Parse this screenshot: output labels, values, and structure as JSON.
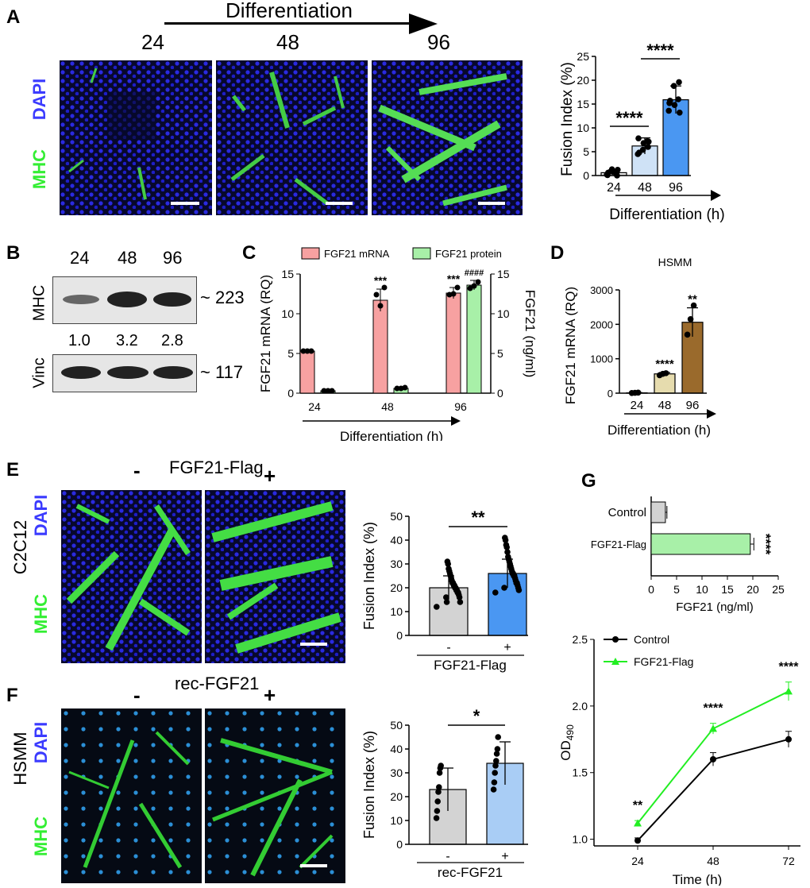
{
  "panelA": {
    "label": "A",
    "header": "Differentiation",
    "times": [
      "24",
      "48",
      "96"
    ],
    "dapi": "DAPI",
    "mhc": "MHC"
  },
  "panelB": {
    "label": "B",
    "times": [
      "24",
      "48",
      "96"
    ],
    "mhc_label": "MHC",
    "vinc_label": "Vinc",
    "mhc_kda": "~ 223",
    "vinc_kda": "~ 117",
    "ratios": [
      "1.0",
      "3.2",
      "2.8"
    ]
  },
  "panelC": {
    "label": "C"
  },
  "panelD": {
    "label": "D"
  },
  "panelE": {
    "label": "E",
    "header": "FGF21-Flag",
    "minus": "-",
    "plus": "+",
    "cell": "C2C12",
    "dapi": "DAPI",
    "mhc": "MHC"
  },
  "panelF": {
    "label": "F",
    "header": "rec-FGF21",
    "minus": "-",
    "plus": "+",
    "cell": "HSMM",
    "dapi": "DAPI",
    "mhc": "MHC"
  },
  "panelG": {
    "label": "G"
  },
  "colors": {
    "dapi": "#3b3bff",
    "mhc": "#33ee33",
    "pink": "#f7a1a1",
    "lightgreen": "#a8f0a8",
    "lightblue": "#cfe2f6",
    "blue": "#4a97f2",
    "gray": "#d3d3d3",
    "brown": "#9a6a2c",
    "tan": "#e6dcae",
    "green_line": "#22ee22"
  },
  "chart_data": [
    {
      "id": "A-fusion",
      "type": "bar",
      "categories": [
        "24",
        "48",
        "96"
      ],
      "values": [
        0.6,
        6.2,
        15.9
      ],
      "errors": [
        0.6,
        1.7,
        2.9
      ],
      "points": [
        [
          0.2,
          0.5,
          1.3,
          0.1,
          0.0,
          0.8,
          0.6,
          1.2
        ],
        [
          4.5,
          7.2,
          5.4,
          7.8,
          6.0,
          6.8,
          4.8,
          7.1
        ],
        [
          13.6,
          16.0,
          18.8,
          15.2,
          19.6,
          14.8,
          15.7,
          13.2
        ]
      ],
      "colors": [
        "#e8e8e8",
        "#cfe2f6",
        "#4a97f2"
      ],
      "ylabel": "Fusion Index (%)",
      "xlabel": "Differentiation (h)",
      "ylim": [
        0,
        25
      ],
      "yticks": [
        0,
        5,
        10,
        15,
        20,
        25
      ],
      "sig": [
        "****",
        "****"
      ]
    },
    {
      "id": "C-fgf21",
      "type": "bar",
      "categories": [
        "24",
        "48",
        "96"
      ],
      "series": [
        {
          "name": "FGF21 mRNA",
          "values": [
            5.3,
            11.7,
            12.6
          ],
          "errors": [
            0.1,
            1.4,
            0.7
          ],
          "points": [
            [
              5.3,
              5.3,
              5.3
            ],
            [
              12.4,
              11.0,
              13.3
            ],
            [
              12.4,
              12.5,
              13.3
            ]
          ]
        },
        {
          "name": "FGF21 protein",
          "values": [
            0.3,
            0.6,
            13.6
          ],
          "errors": [
            0.0,
            0.2,
            0.6
          ],
          "points": [
            [
              0.3,
              0.3,
              0.3
            ],
            [
              0.6,
              0.6,
              0.7
            ],
            [
              13.2,
              13.5,
              14.0
            ]
          ]
        }
      ],
      "ylabel": "FGF21 mRNA (RQ)",
      "ylabel2": "FGF21 (ng/ml)",
      "xlabel": "Differentiation (h)",
      "ylim": [
        0,
        15
      ],
      "yticks": [
        0,
        5,
        10,
        15
      ],
      "sig_mrna": [
        "",
        "***",
        "***"
      ],
      "sig_protein": [
        "",
        "",
        "####"
      ]
    },
    {
      "id": "D-hsmm",
      "type": "bar",
      "title": "HSMM",
      "categories": [
        "24",
        "48",
        "96"
      ],
      "values": [
        10,
        560,
        2060
      ],
      "errors": [
        5,
        40,
        420
      ],
      "points": [
        [
          5,
          10,
          15
        ],
        [
          520,
          560,
          580
        ],
        [
          1700,
          2150,
          2550
        ]
      ],
      "colors": [
        "#e8e8e8",
        "#e6dcae",
        "#9a6a2c"
      ],
      "ylabel": "FGF21 mRNA (RQ)",
      "xlabel": "Differentiation (h)",
      "ylim": [
        0,
        3000
      ],
      "yticks": [
        0,
        1000,
        2000,
        3000
      ],
      "sig": [
        "",
        "****",
        "**"
      ]
    },
    {
      "id": "E-fusion",
      "type": "bar",
      "categories": [
        "-",
        "+"
      ],
      "values": [
        20,
        26
      ],
      "errors": [
        5,
        6
      ],
      "points": [
        [
          12,
          14,
          16,
          17,
          18,
          18,
          19,
          19,
          20,
          20,
          21,
          21,
          22,
          22,
          23,
          24,
          25,
          26,
          27,
          28,
          30,
          31,
          14,
          16
        ],
        [
          18,
          19,
          20,
          21,
          22,
          22,
          23,
          24,
          25,
          25,
          26,
          26,
          27,
          28,
          29,
          30,
          31,
          32,
          33,
          35,
          37,
          38,
          40,
          41,
          20
        ]
      ],
      "colors": [
        "#d3d3d3",
        "#4a97f2"
      ],
      "ylabel": "Fusion Index (%)",
      "xlabel": "FGF21-Flag",
      "ylim": [
        0,
        50
      ],
      "yticks": [
        0,
        10,
        20,
        30,
        40,
        50
      ],
      "sig": "**"
    },
    {
      "id": "F-fusion",
      "type": "bar",
      "categories": [
        "-",
        "+"
      ],
      "values": [
        23,
        34
      ],
      "errors": [
        9,
        9
      ],
      "points": [
        [
          11,
          14,
          18,
          22,
          24,
          30,
          32,
          33
        ],
        [
          23,
          26,
          30,
          33,
          35,
          38,
          40,
          45
        ]
      ],
      "colors": [
        "#d3d3d3",
        "#a9cdf5"
      ],
      "ylabel": "Fusion Index (%)",
      "xlabel": "rec-FGF21",
      "ylim": [
        0,
        50
      ],
      "yticks": [
        0,
        10,
        20,
        30,
        40,
        50
      ],
      "sig": "*"
    },
    {
      "id": "G-top",
      "type": "bar",
      "orientation": "horizontal",
      "categories": [
        "Control",
        "FGF21-Flag"
      ],
      "values": [
        2.8,
        19.5
      ],
      "errors": [
        0.3,
        0.7
      ],
      "colors": [
        "#d3d3d3",
        "#a8f0a8"
      ],
      "xlabel": "FGF21 (ng/ml)",
      "xlim": [
        0,
        25
      ],
      "xticks": [
        0,
        5,
        10,
        15,
        20,
        25
      ],
      "sig": "****"
    },
    {
      "id": "G-bottom",
      "type": "line",
      "x": [
        24,
        48,
        72
      ],
      "series": [
        {
          "name": "Control",
          "values": [
            0.99,
            1.6,
            1.75
          ],
          "errors": [
            0.02,
            0.05,
            0.06
          ],
          "color": "#000000"
        },
        {
          "name": "FGF21-Flag",
          "values": [
            1.12,
            1.83,
            2.11
          ],
          "errors": [
            0.02,
            0.04,
            0.07
          ],
          "color": "#22ee22"
        }
      ],
      "xlabel": "Time (h)",
      "ylabel": "OD",
      "ylabel_sub": "490",
      "ylim": [
        0.95,
        2.5
      ],
      "yticks": [
        1.0,
        1.5,
        2.0,
        2.5
      ],
      "sig": [
        "**",
        "****",
        "****"
      ]
    }
  ]
}
